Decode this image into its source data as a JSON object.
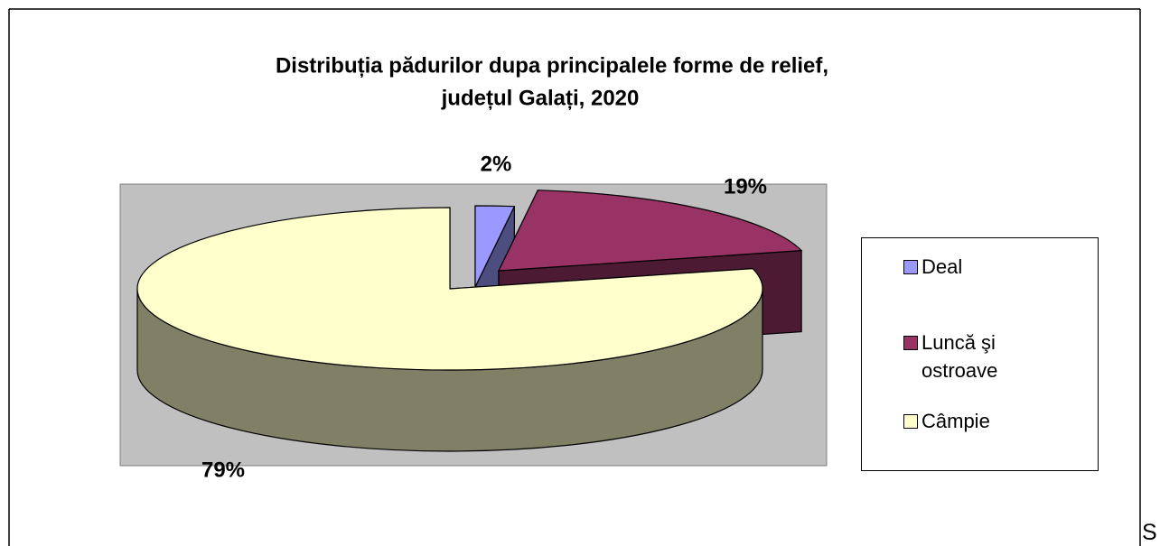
{
  "chart_data": {
    "type": "pie",
    "title": [
      "Distribuția pădurilor dupa principalele forme de relief,",
      "județul Galați, 2020"
    ],
    "categories": [
      "Deal",
      "Luncă şi ostroave",
      "Câmpie"
    ],
    "values": [
      2,
      19,
      79
    ],
    "value_labels": [
      "2%",
      "19%",
      "79%"
    ],
    "colors": [
      "#9999ff",
      "#993366",
      "#ffffcc"
    ],
    "side_colors": [
      "#4d4d80",
      "#4d1a33",
      "#808066"
    ],
    "legend": "right"
  },
  "page_text": "S"
}
